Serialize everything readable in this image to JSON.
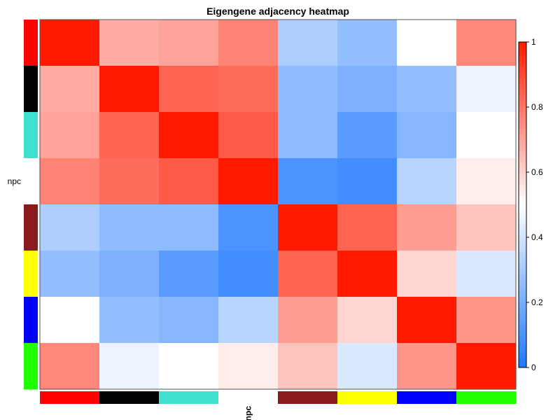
{
  "chart_data": {
    "type": "heatmap",
    "title": "Eigengene adjacency heatmap",
    "modules": [
      "#ff0000",
      "#000000",
      "#40e0d0",
      "#ffffff",
      "#8b1a1a",
      "#ffff00",
      "#0000ff",
      "#22ff00"
    ],
    "y_labels": [
      "",
      "",
      "",
      "npc",
      "",
      "",
      "",
      ""
    ],
    "x_labels": [
      "",
      "",
      "",
      "npc",
      "",
      "",
      "",
      ""
    ],
    "values": [
      [
        1.0,
        0.68,
        0.7,
        0.77,
        0.32,
        0.26,
        0.5,
        0.76
      ],
      [
        0.68,
        1.0,
        0.84,
        0.82,
        0.25,
        0.21,
        0.26,
        0.46
      ],
      [
        0.7,
        0.84,
        1.0,
        0.86,
        0.25,
        0.13,
        0.23,
        0.5
      ],
      [
        0.77,
        0.82,
        0.86,
        1.0,
        0.1,
        0.08,
        0.34,
        0.54
      ],
      [
        0.32,
        0.25,
        0.25,
        0.1,
        1.0,
        0.84,
        0.71,
        0.63
      ],
      [
        0.26,
        0.21,
        0.13,
        0.08,
        0.84,
        1.0,
        0.59,
        0.42
      ],
      [
        0.5,
        0.26,
        0.23,
        0.34,
        0.71,
        0.59,
        1.0,
        0.73
      ],
      [
        0.76,
        0.46,
        0.5,
        0.54,
        0.63,
        0.42,
        0.73,
        1.0
      ]
    ],
    "colorbar": {
      "range": [
        0,
        1
      ],
      "ticks": [
        "0",
        "0.2",
        "0.4",
        "0.6",
        "0.8",
        "1"
      ],
      "low_color": "#1e78ff",
      "mid_color": "#ffffff",
      "high_color": "#ff1a00"
    }
  }
}
